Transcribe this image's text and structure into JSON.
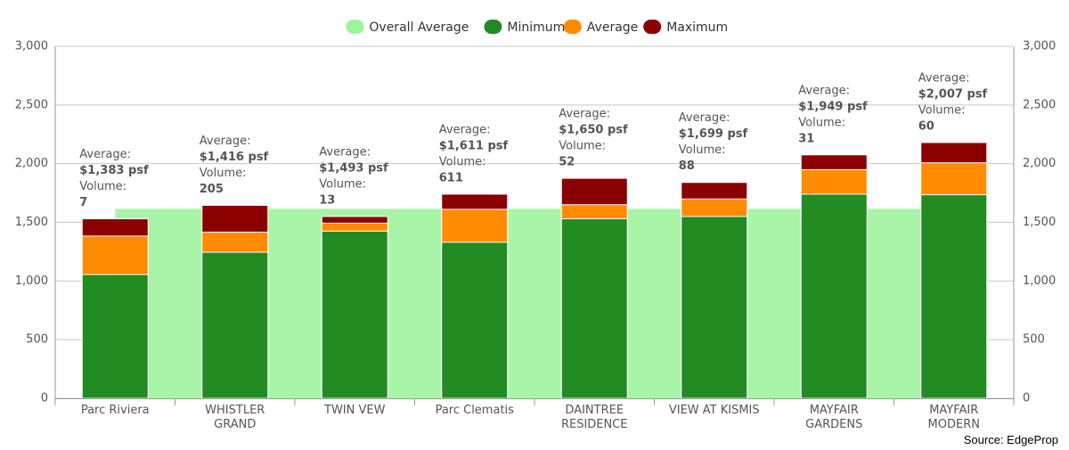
{
  "chart_data": {
    "type": "overlaid-bar",
    "categories": [
      "Parc Riviera",
      "WHISTLER GRAND",
      "TWIN VEW",
      "Parc Clematis",
      "DAINTREE RESIDENCE",
      "VIEW AT KISMIS",
      "MAYFAIR GARDENS",
      "MAYFAIR MODERN"
    ],
    "series": [
      {
        "name": "Overall Average",
        "color": "#a8f5a8",
        "legend_color": "#98f898",
        "values": [
          1615,
          1615,
          1615,
          1615,
          1615,
          1615,
          1615,
          1615
        ]
      },
      {
        "name": "Minimum",
        "color": "#228b22",
        "values": [
          1055,
          1245,
          1425,
          1330,
          1530,
          1550,
          1740,
          1735
        ]
      },
      {
        "name": "Average",
        "color": "#ff8c00",
        "values": [
          1383,
          1416,
          1493,
          1611,
          1650,
          1699,
          1949,
          2007
        ],
        "value_labels": [
          "$1,383 psf",
          "$1,416 psf",
          "$1,493 psf",
          "$1,611 psf",
          "$1,650 psf",
          "$1,699 psf",
          "$1,949 psf",
          "$2,007 psf"
        ]
      },
      {
        "name": "Maximum",
        "color": "#8b0000",
        "values": [
          1530,
          1645,
          1550,
          1740,
          1875,
          1840,
          2075,
          2180
        ]
      }
    ],
    "average_caption": "Average:",
    "volume_caption": "Volume:",
    "volumes": [
      7,
      205,
      13,
      611,
      52,
      88,
      31,
      60
    ],
    "ylim": [
      0,
      3000
    ],
    "yticks": [
      0,
      500,
      {
        "value": 1000,
        "label": "1,000"
      },
      {
        "value": 1500,
        "label": "1,500"
      },
      {
        "value": 2000,
        "label": "2,000"
      },
      {
        "value": 2500,
        "label": "2,500"
      },
      {
        "value": 3000,
        "label": "3,000"
      }
    ],
    "grid": true,
    "source": "Source: EdgeProp"
  }
}
